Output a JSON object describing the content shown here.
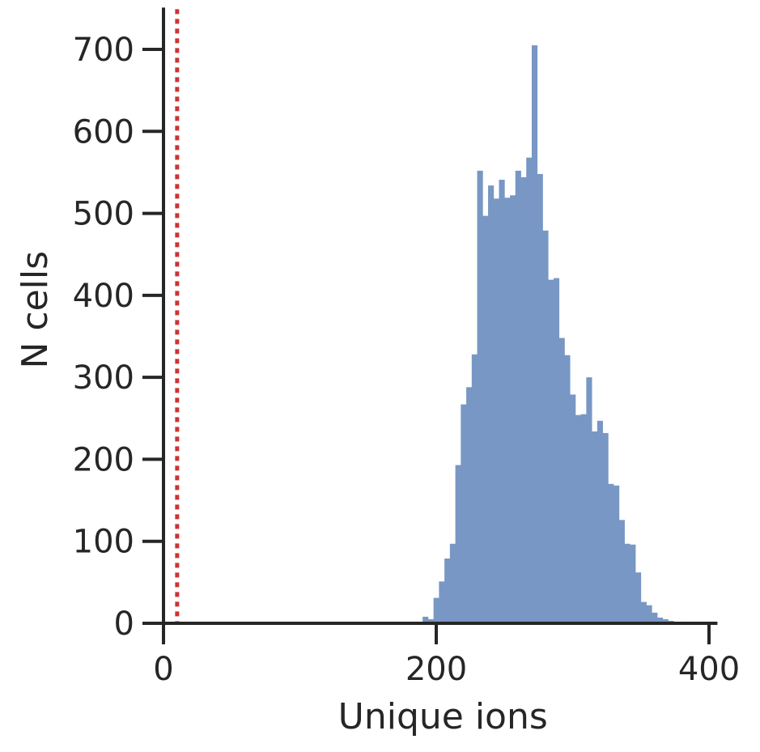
{
  "chart_data": {
    "type": "bar",
    "title": "",
    "xlabel": "Unique ions",
    "ylabel": "N cells",
    "xlim": [
      0,
      405
    ],
    "ylim": [
      0,
      745
    ],
    "xticks": [
      0,
      200,
      400
    ],
    "yticks": [
      0,
      100,
      200,
      300,
      400,
      500,
      600,
      700
    ],
    "grid": false,
    "bar_color": "#7897c4",
    "threshold_line": {
      "x": 10,
      "color": "#cc3333",
      "style": "dotted"
    },
    "bins": {
      "x_start": 190,
      "bin_width": 4,
      "counts": [
        8,
        5,
        31,
        51,
        79,
        97,
        193,
        267,
        288,
        328,
        552,
        497,
        534,
        518,
        541,
        519,
        522,
        552,
        544,
        568,
        705,
        548,
        479,
        419,
        421,
        348,
        327,
        279,
        254,
        255,
        300,
        234,
        247,
        232,
        170,
        168,
        126,
        97,
        96,
        62,
        26,
        22,
        13,
        7,
        5,
        3,
        2,
        2
      ]
    }
  }
}
